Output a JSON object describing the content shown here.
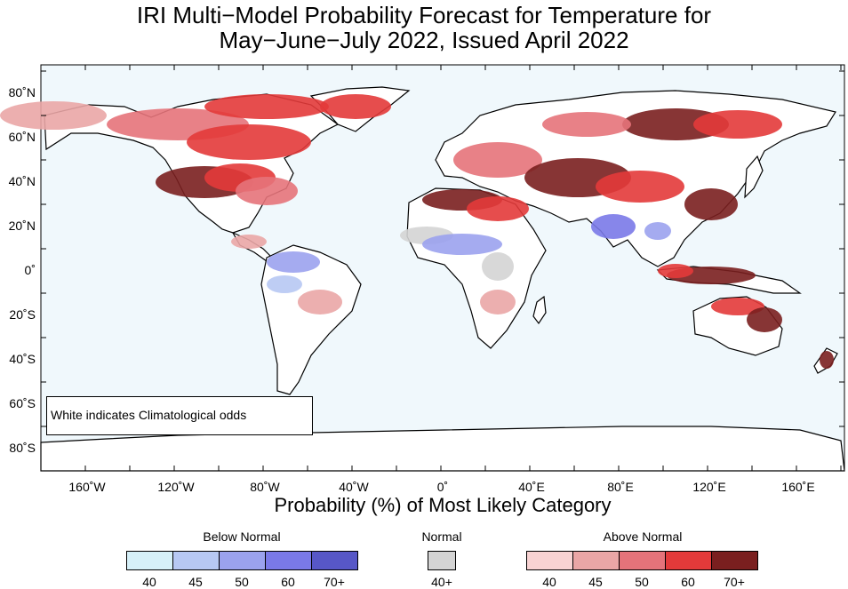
{
  "title_line1": "IRI Multi−Model Probability Forecast for Temperature for",
  "title_line2": "May−June−July 2022, Issued April 2022",
  "x_axis_title": "Probability (%) of Most Likely Category",
  "note": "White indicates Climatological odds",
  "x_ticks": [
    "160˚W",
    "120˚W",
    "80˚W",
    "40˚W",
    "0˚",
    "40˚E",
    "80˚E",
    "120˚E",
    "160˚E"
  ],
  "y_ticks": [
    "80˚N",
    "60˚N",
    "40˚N",
    "20˚N",
    "0˚",
    "20˚S",
    "40˚S",
    "60˚S",
    "80˚S"
  ],
  "legend": {
    "below": {
      "title": "Below Normal",
      "labels": [
        "40",
        "45",
        "50",
        "60",
        "70+"
      ],
      "colors": [
        "#d6f0f8",
        "#b7c8f3",
        "#9ba2ee",
        "#7a79e8",
        "#5757c7"
      ]
    },
    "normal": {
      "title": "Normal",
      "label": "40+",
      "color": "#d4d4d4"
    },
    "above": {
      "title": "Above Normal",
      "labels": [
        "40",
        "45",
        "50",
        "60",
        "70+"
      ],
      "colors": [
        "#f8d3d3",
        "#eaa6a6",
        "#e5737a",
        "#e33a3a",
        "#7a1f1f"
      ]
    }
  },
  "colors": {
    "ocean": "#f0f8fc",
    "land_default": "#ffffff",
    "coast": "#000000"
  }
}
